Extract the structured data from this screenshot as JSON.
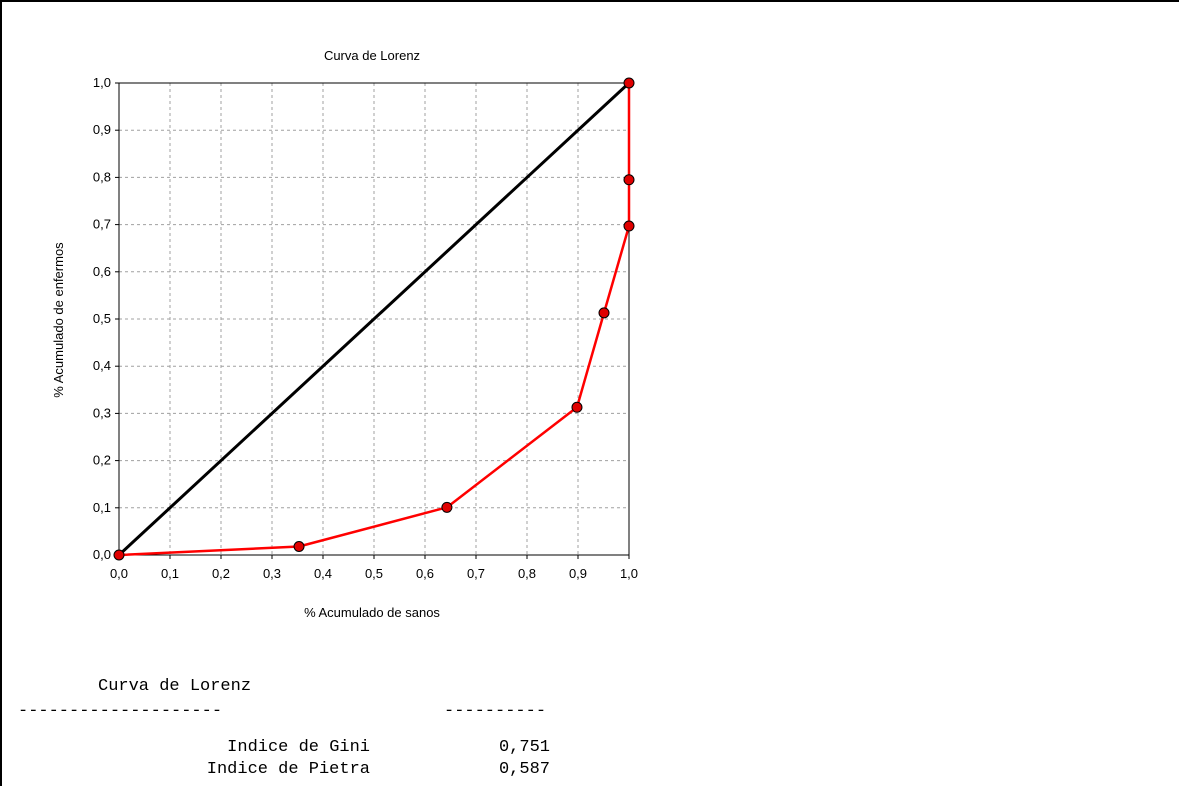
{
  "colors": {
    "diagonal": "#000000",
    "curve": "#ff0000",
    "marker_fill": "#e00000",
    "grid": "#a0a0a0",
    "axis": "#000000"
  },
  "chart_data": {
    "type": "line",
    "title": "Curva de Lorenz",
    "xlabel": "% Acumulado de sanos",
    "ylabel": "% Acumulado de enfermos",
    "xlim": [
      0,
      1
    ],
    "ylim": [
      0,
      1
    ],
    "xticks": [
      "0,0",
      "0,1",
      "0,2",
      "0,3",
      "0,4",
      "0,5",
      "0,6",
      "0,7",
      "0,8",
      "0,9",
      "1,0"
    ],
    "yticks": [
      "0,0",
      "0,1",
      "0,2",
      "0,3",
      "0,4",
      "0,5",
      "0,6",
      "0,7",
      "0,8",
      "0,9",
      "1,0"
    ],
    "grid": true,
    "legend": "none",
    "series": [
      {
        "x": [
          0,
          1
        ],
        "y": [
          0,
          1
        ],
        "markers": false
      },
      {
        "x": [
          0,
          0.353,
          0.643,
          0.898,
          0.951,
          1.0,
          1.0,
          1.0
        ],
        "y": [
          0,
          0.018,
          0.101,
          0.313,
          0.513,
          0.697,
          0.795,
          1.0
        ],
        "markers": true
      }
    ]
  },
  "summary": {
    "title": "Curva de Lorenz",
    "rule_left": "--------------------",
    "rule_right": "----------",
    "rows": [
      {
        "label": "Indice de Gini",
        "value": "0,751"
      },
      {
        "label": "Indice de Pietra",
        "value": "0,587"
      }
    ]
  }
}
